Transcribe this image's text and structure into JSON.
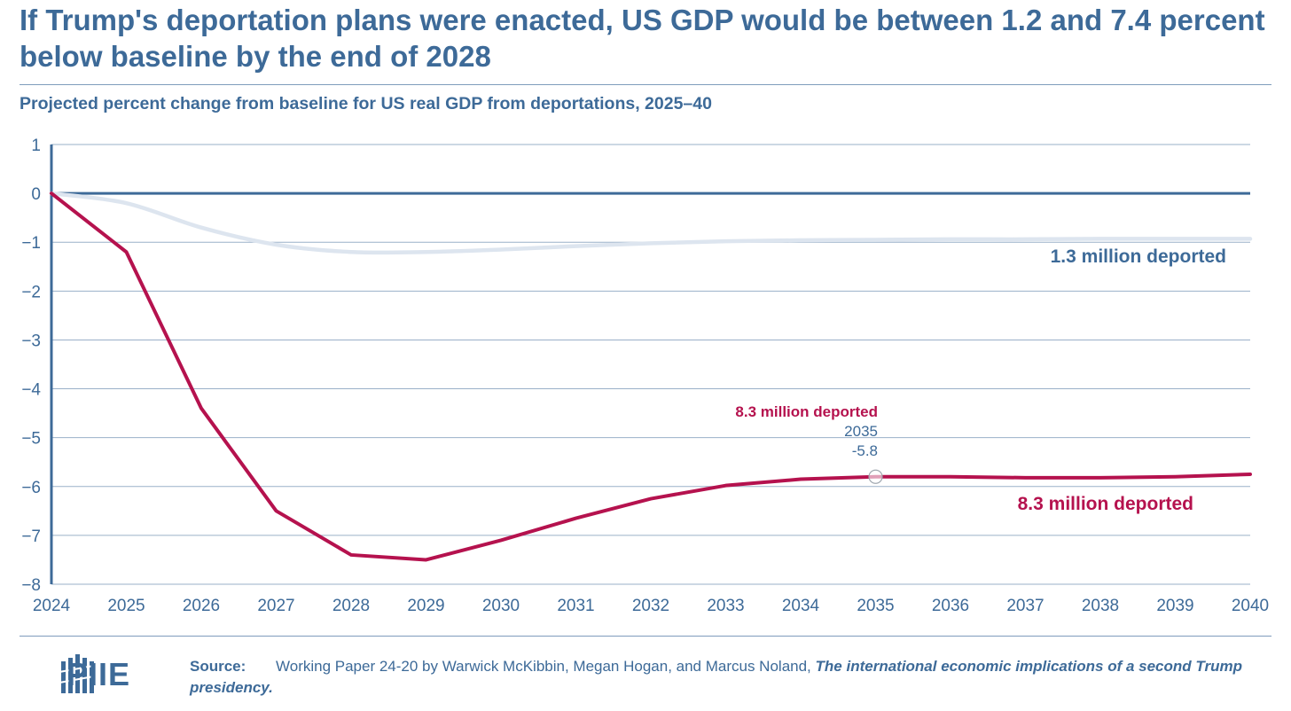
{
  "title": "If Trump's deportation plans were enacted, US GDP would be between 1.2 and 7.4 percent below baseline by the end of 2028",
  "subtitle": "Projected percent change from baseline for US real GDP from deportations, 2025–40",
  "colors": {
    "brand": "#3d6a98",
    "series_high": "#b5124e",
    "series_low": "#dde5ef",
    "grid": "#9ab0c8"
  },
  "chart_data": {
    "type": "line",
    "x": [
      2024,
      2025,
      2026,
      2027,
      2028,
      2029,
      2030,
      2031,
      2032,
      2033,
      2034,
      2035,
      2036,
      2037,
      2038,
      2039,
      2040
    ],
    "series": [
      {
        "name": "1.3 million deported",
        "values": [
          0,
          -0.2,
          -0.7,
          -1.05,
          -1.2,
          -1.2,
          -1.15,
          -1.08,
          -1.02,
          -0.98,
          -0.96,
          -0.95,
          -0.94,
          -0.94,
          -0.93,
          -0.93,
          -0.93
        ]
      },
      {
        "name": "8.3 million deported",
        "values": [
          0,
          -1.2,
          -4.4,
          -6.5,
          -7.4,
          -7.5,
          -7.1,
          -6.65,
          -6.25,
          -5.98,
          -5.85,
          -5.8,
          -5.8,
          -5.82,
          -5.82,
          -5.8,
          -5.75
        ]
      }
    ],
    "ylim": [
      -8,
      1
    ],
    "yticks": [
      1,
      0,
      -1,
      -2,
      -3,
      -4,
      -5,
      -6,
      -7,
      -8
    ],
    "ytick_labels": [
      "1",
      "0",
      "−1",
      "−2",
      "−3",
      "−4",
      "−5",
      "−6",
      "−7",
      "−8"
    ],
    "grid": true,
    "labels": {
      "low": "1.3 million deported",
      "high": "8.3 million deported"
    },
    "tooltip": {
      "series": "8.3 million deported",
      "x_text": "2035",
      "y_text": "-5.8",
      "x": 2035,
      "y": -5.8
    }
  },
  "source": {
    "label": "Source:",
    "text": "Working Paper 24-20 by Warwick McKibbin, Megan Hogan, and Marcus Noland,",
    "publication": "The international economic implications of a second Trump presidency."
  },
  "logo": {
    "text": "PIIE"
  }
}
